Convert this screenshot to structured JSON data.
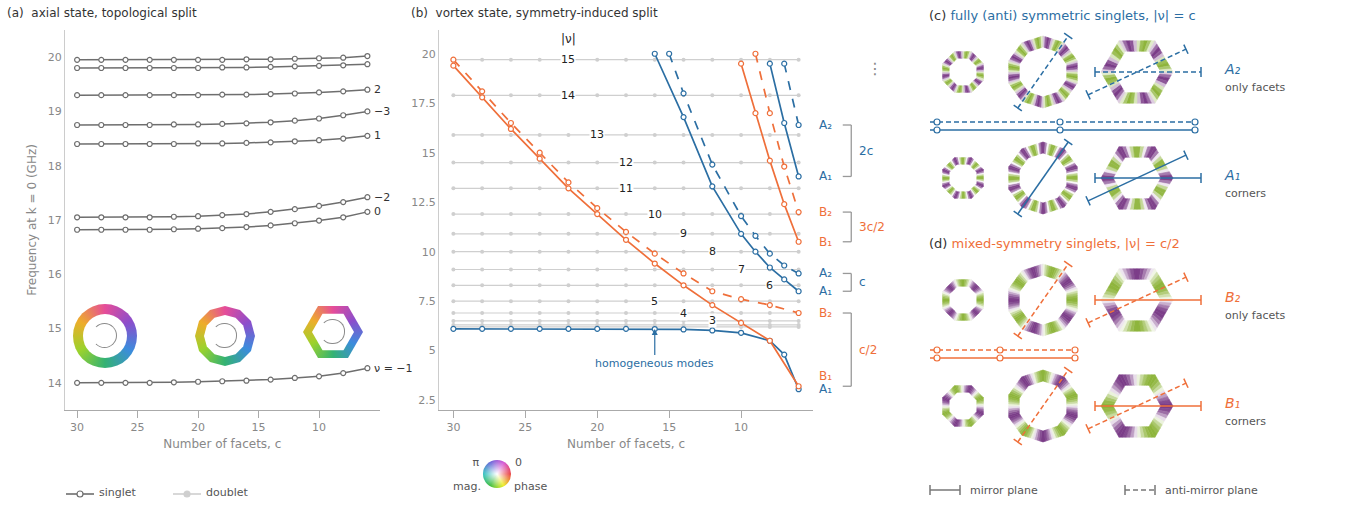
{
  "chart_data": [
    {
      "type": "line",
      "panel": "(a)",
      "title": "axial state, topological split",
      "x_label": "Number of facets, c",
      "y_label": "Frequency at k = 0 (GHz)",
      "xlim": [
        31,
        5
      ],
      "xticks": [
        30,
        25,
        20,
        15,
        10
      ],
      "ylim": [
        13.5,
        20.5
      ],
      "yticks": [
        14,
        15,
        16,
        17,
        18,
        19,
        20
      ],
      "grid": false,
      "legend": "bottom",
      "legend_items": [
        {
          "name": "singlet",
          "color": "#6e6e6e",
          "marker": "open-circle"
        },
        {
          "name": "doublet",
          "color": "#cfcfcf",
          "marker": "circle"
        }
      ],
      "x": [
        30,
        28,
        26,
        24,
        22,
        20,
        18,
        16,
        14,
        12,
        10,
        8,
        6
      ],
      "series": [
        {
          "name": "ν = −1",
          "color": "#6e6e6e",
          "marker": "open-circle",
          "values": [
            14.0,
            14.0,
            14.0,
            14.0,
            14.01,
            14.02,
            14.03,
            14.04,
            14.06,
            14.09,
            14.12,
            14.18,
            14.27
          ]
        },
        {
          "name": "0",
          "color": "#6e6e6e",
          "marker": "open-circle",
          "values": [
            16.82,
            16.82,
            16.82,
            16.82,
            16.83,
            16.84,
            16.85,
            16.87,
            16.9,
            16.94,
            16.99,
            17.05,
            17.15
          ]
        },
        {
          "name": "−2",
          "color": "#6e6e6e",
          "marker": "open-circle",
          "values": [
            17.05,
            17.05,
            17.05,
            17.05,
            17.06,
            17.07,
            17.09,
            17.11,
            17.15,
            17.2,
            17.26,
            17.33,
            17.42
          ]
        },
        {
          "name": "1",
          "color": "#6e6e6e",
          "marker": "open-circle",
          "values": [
            18.4,
            18.4,
            18.4,
            18.4,
            18.4,
            18.41,
            18.41,
            18.42,
            18.43,
            18.45,
            18.47,
            18.5,
            18.55
          ]
        },
        {
          "name": "−3",
          "color": "#6e6e6e",
          "marker": "open-circle",
          "values": [
            18.75,
            18.75,
            18.75,
            18.75,
            18.76,
            18.76,
            18.77,
            18.78,
            18.8,
            18.83,
            18.87,
            18.93,
            19.0
          ]
        },
        {
          "name": "2",
          "color": "#6e6e6e",
          "marker": "open-circle",
          "values": [
            19.3,
            19.3,
            19.3,
            19.3,
            19.3,
            19.3,
            19.31,
            19.31,
            19.32,
            19.33,
            19.35,
            19.37,
            19.4
          ]
        },
        {
          "name": null,
          "color": "#6e6e6e",
          "marker": "open-circle",
          "values": [
            19.8,
            19.8,
            19.8,
            19.8,
            19.8,
            19.8,
            19.81,
            19.81,
            19.82,
            19.83,
            19.84,
            19.85,
            19.87
          ]
        },
        {
          "name": null,
          "color": "#6e6e6e",
          "marker": "open-circle",
          "values": [
            19.95,
            19.95,
            19.95,
            19.95,
            19.95,
            19.95,
            19.95,
            19.96,
            19.96,
            19.97,
            19.98,
            19.99,
            20.02
          ]
        }
      ]
    },
    {
      "type": "line",
      "panel": "(b)",
      "title": "vortex state, symmetry-induced split",
      "x_label": "Number of facets, c",
      "xlim": [
        31,
        5
      ],
      "xticks": [
        30,
        25,
        20,
        15,
        10
      ],
      "ylim": [
        2,
        21.2
      ],
      "yticks": [
        2.5,
        5,
        7.5,
        10,
        12.5,
        15,
        17.5,
        20
      ],
      "grid": false,
      "header": "|ν|",
      "more": "⋮",
      "colorwheel": {
        "left": "π",
        "right": "0",
        "bottom_left": "mag.",
        "bottom_right": "phase"
      },
      "doublets": {
        "color": "#cfcfcf",
        "marker": "circle",
        "x": [
          30,
          28,
          26,
          24,
          22,
          20,
          18,
          16,
          14,
          12,
          10,
          8,
          6
        ],
        "series": [
          {
            "name": null,
            "label_x": null,
            "values": [
              6.2,
              6.2,
              6.2,
              6.2,
              6.2,
              6.2,
              6.2,
              6.2,
              6.2,
              6.2,
              6.2,
              6.2,
              6.2
            ]
          },
          {
            "name": null,
            "label_x": null,
            "values": [
              6.3,
              6.3,
              6.3,
              6.3,
              6.3,
              6.3,
              6.3,
              6.3,
              6.3,
              6.3,
              6.3,
              6.3,
              6.3
            ]
          },
          {
            "name": "3",
            "label_x": 12,
            "values": [
              6.5,
              6.5,
              6.5,
              6.5,
              6.5,
              6.5,
              6.5,
              6.5,
              6.5,
              6.5,
              6.5,
              6.5,
              6.5
            ]
          },
          {
            "name": "4",
            "label_x": 14,
            "values": [
              6.9,
              6.9,
              6.9,
              6.9,
              6.9,
              6.9,
              6.9,
              6.9,
              6.9,
              6.9,
              6.9,
              6.9,
              6.9
            ]
          },
          {
            "name": "5",
            "label_x": 16,
            "values": [
              7.5,
              7.5,
              7.5,
              7.5,
              7.5,
              7.5,
              7.5,
              7.5,
              7.5,
              7.5,
              7.5,
              7.5,
              7.5
            ]
          },
          {
            "name": "6",
            "label_x": 8,
            "values": [
              8.3,
              8.3,
              8.3,
              8.3,
              8.3,
              8.3,
              8.3,
              8.3,
              8.3,
              8.3,
              8.3,
              8.3,
              8.3
            ]
          },
          {
            "name": "7",
            "label_x": 10,
            "values": [
              9.1,
              9.1,
              9.1,
              9.1,
              9.1,
              9.1,
              9.1,
              9.1,
              9.1,
              9.1,
              9.1,
              9.1,
              9.1
            ]
          },
          {
            "name": "8",
            "label_x": 12,
            "values": [
              10.0,
              10.0,
              10.0,
              10.0,
              10.0,
              10.0,
              10.0,
              10.0,
              10.0,
              10.0,
              10.0,
              10.0,
              10.0
            ]
          },
          {
            "name": "9",
            "label_x": 14,
            "values": [
              10.9,
              10.9,
              10.9,
              10.9,
              10.9,
              10.9,
              10.9,
              10.9,
              10.9,
              10.9,
              10.9,
              10.9,
              10.9
            ]
          },
          {
            "name": "10",
            "label_x": 16,
            "values": [
              11.9,
              11.9,
              11.9,
              11.9,
              11.9,
              11.9,
              11.9,
              11.9,
              11.9,
              11.9,
              11.9,
              11.9,
              11.9
            ]
          },
          {
            "name": "11",
            "label_x": 18,
            "values": [
              13.2,
              13.2,
              13.2,
              13.2,
              13.2,
              13.2,
              13.2,
              13.2,
              13.2,
              13.2,
              13.2,
              13.2,
              13.2
            ]
          },
          {
            "name": "12",
            "label_x": 18,
            "values": [
              14.5,
              14.5,
              14.5,
              14.5,
              14.5,
              14.5,
              14.5,
              14.5,
              14.5,
              14.5,
              14.5,
              14.5,
              14.5
            ]
          },
          {
            "name": "13",
            "label_x": 20,
            "values": [
              15.9,
              15.9,
              15.9,
              15.9,
              15.9,
              15.9,
              15.9,
              15.9,
              15.9,
              15.9,
              15.9,
              15.9,
              15.9
            ]
          },
          {
            "name": "14",
            "label_x": 22,
            "values": [
              17.9,
              17.9,
              17.9,
              17.9,
              17.9,
              17.9,
              17.9,
              17.9,
              17.9,
              17.9,
              17.9,
              17.9,
              17.9
            ]
          },
          {
            "name": "15",
            "label_x": 22,
            "values": [
              19.7,
              19.7,
              19.7,
              19.7,
              19.7,
              19.7,
              19.7,
              19.7,
              19.7,
              19.7,
              19.7,
              19.7,
              19.7
            ]
          }
        ]
      },
      "groups": [
        {
          "color": "#2b6ea3",
          "note": {
            "text": "homogeneous modes",
            "x": 16,
            "y": 6.09
          },
          "series": [
            {
              "name": "A₁",
              "line_style": "solid",
              "marker": "open-circle",
              "x": [
                30,
                28,
                26,
                24,
                22,
                20,
                18,
                16,
                14,
                12,
                10,
                8,
                7,
                6
              ],
              "values": [
                6.1,
                6.1,
                6.1,
                6.1,
                6.1,
                6.1,
                6.1,
                6.09,
                6.07,
                6.02,
                5.9,
                5.5,
                4.8,
                3.05
              ]
            }
          ]
        },
        {
          "color": "#ef6f3a",
          "bracket": "c/2",
          "series": [
            {
              "name": "B₁",
              "line_style": "solid",
              "marker": "open-circle",
              "x": [
                30,
                28,
                26,
                24,
                22,
                20,
                18,
                16,
                14,
                12,
                10,
                8,
                6
              ],
              "values": [
                19.4,
                17.8,
                16.2,
                14.7,
                13.2,
                11.9,
                10.6,
                9.4,
                8.3,
                7.3,
                6.4,
                5.5,
                3.2
              ]
            },
            {
              "name": "B₂",
              "line_style": "dashed",
              "marker": "open-circle",
              "x": [
                30,
                28,
                26,
                24,
                22,
                20,
                18,
                16,
                14,
                12,
                10,
                8,
                6
              ],
              "values": [
                19.7,
                18.1,
                16.5,
                15.0,
                13.5,
                12.2,
                11.0,
                9.9,
                8.9,
                8.0,
                7.6,
                7.3,
                6.9
              ]
            }
          ]
        },
        {
          "color": "#2b6ea3",
          "bracket": "c",
          "series": [
            {
              "name": "A₁",
              "line_style": "solid",
              "marker": "open-circle",
              "x": [
                16,
                14,
                12,
                10,
                9,
                8,
                7,
                6
              ],
              "values": [
                20.0,
                16.8,
                13.3,
                10.9,
                10.0,
                9.2,
                8.6,
                8.0
              ]
            },
            {
              "name": "A₂",
              "line_style": "dashed",
              "marker": "open-circle",
              "x": [
                15,
                14,
                12,
                10,
                9,
                8,
                7,
                6
              ],
              "values": [
                20.0,
                18.0,
                14.4,
                11.8,
                10.8,
                9.9,
                9.3,
                8.9
              ]
            }
          ]
        },
        {
          "color": "#ef6f3a",
          "bracket": "3c/2",
          "series": [
            {
              "name": "B₁",
              "line_style": "solid",
              "marker": "open-circle",
              "x": [
                10,
                9,
                8,
                7,
                6
              ],
              "values": [
                19.5,
                17.0,
                14.6,
                12.4,
                10.5
              ]
            },
            {
              "name": "B₂",
              "line_style": "dashed",
              "marker": "open-circle",
              "x": [
                9,
                8,
                7,
                6
              ],
              "values": [
                20.0,
                17.0,
                14.3,
                12.0
              ]
            }
          ]
        },
        {
          "color": "#2b6ea3",
          "bracket": "2c",
          "series": [
            {
              "name": "A₁",
              "line_style": "solid",
              "marker": "open-circle",
              "x": [
                8,
                7,
                6
              ],
              "values": [
                19.5,
                16.5,
                13.8
              ]
            },
            {
              "name": "A₂",
              "line_style": "dashed",
              "marker": "open-circle",
              "x": [
                7,
                6
              ],
              "values": [
                19.5,
                16.4
              ]
            }
          ]
        }
      ]
    }
  ],
  "diagrams": {
    "panels": [
      {
        "panel": "(c)",
        "title": "fully (anti) symmetric singlets, |ν| = c",
        "color": "#2b6ea3",
        "rows": [
          {
            "name": "A₂",
            "note": "only facets",
            "line_style": "dashed"
          },
          {
            "name": "A₁",
            "note": "corners",
            "line_style": "solid"
          }
        ]
      },
      {
        "panel": "(d)",
        "title": "mixed-symmetry singlets, |ν| = c/2",
        "color": "#ef6f3a",
        "rows": [
          {
            "name": "B₂",
            "note": "only facets",
            "line_style": "mixed"
          },
          {
            "name": "B₁",
            "note": "corners",
            "line_style": "mixed"
          }
        ]
      }
    ],
    "legend": [
      {
        "label": "mirror plane",
        "line_style": "solid"
      },
      {
        "label": "anti-mirror plane",
        "line_style": "dashed"
      }
    ]
  }
}
